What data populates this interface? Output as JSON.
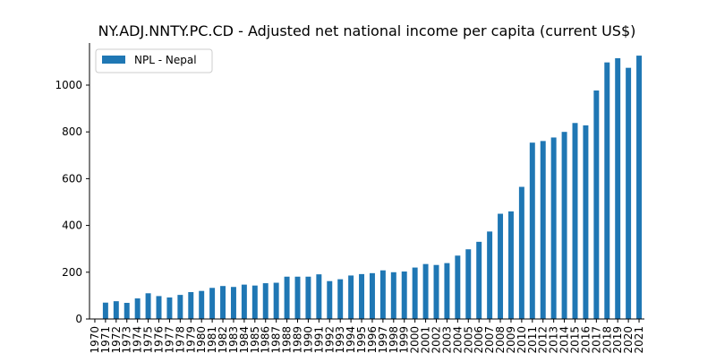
{
  "chart_data": {
    "type": "bar",
    "title": "NY.ADJ.NNTY.PC.CD - Adjusted net national income per capita (current US$)",
    "xlabel": "",
    "ylabel": "",
    "ylim": [
      0,
      1180
    ],
    "yticks": [
      0,
      200,
      400,
      600,
      800,
      1000
    ],
    "legend": "top-left",
    "grid": false,
    "bar_color": "#1f77b4",
    "categories": [
      "1970",
      "1971",
      "1972",
      "1973",
      "1974",
      "1975",
      "1976",
      "1977",
      "1978",
      "1979",
      "1980",
      "1981",
      "1982",
      "1983",
      "1984",
      "1985",
      "1986",
      "1987",
      "1988",
      "1989",
      "1990",
      "1991",
      "1992",
      "1993",
      "1994",
      "1995",
      "1996",
      "1997",
      "1998",
      "1999",
      "2000",
      "2001",
      "2002",
      "2003",
      "2004",
      "2005",
      "2006",
      "2007",
      "2008",
      "2009",
      "2010",
      "2011",
      "2012",
      "2013",
      "2014",
      "2015",
      "2016",
      "2017",
      "2018",
      "2019",
      "2020",
      "2021"
    ],
    "series": [
      {
        "name": "NPL - Nepal",
        "values": [
          null,
          70,
          76,
          69,
          88,
          110,
          98,
          92,
          103,
          115,
          120,
          133,
          141,
          137,
          147,
          143,
          153,
          155,
          181,
          181,
          181,
          191,
          162,
          170,
          186,
          192,
          196,
          208,
          200,
          203,
          220,
          235,
          231,
          239,
          271,
          298,
          330,
          374,
          450,
          460,
          565,
          754,
          761,
          776,
          800,
          838,
          828,
          977,
          1097,
          1115,
          1074,
          1126
        ]
      }
    ]
  }
}
